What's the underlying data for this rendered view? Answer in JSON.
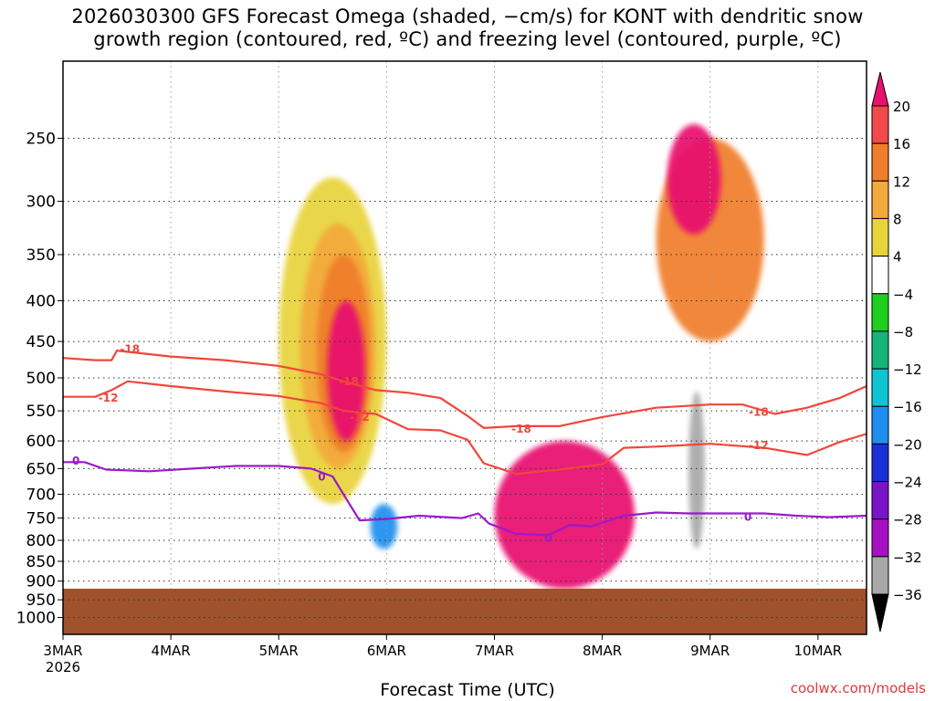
{
  "chart_data": {
    "type": "heatmap",
    "title_line1": "2026030300 GFS Forecast Omega (shaded, −cm/s) for KONT with dendritic snow",
    "title_line2": "growth region (contoured, red, ºC) and freezing level (contoured, purple, ºC)",
    "xlabel": "Forecast Time (UTC)",
    "ylabel": "",
    "x_ticks": [
      "3MAR",
      "4MAR",
      "5MAR",
      "6MAR",
      "7MAR",
      "8MAR",
      "9MAR",
      "10MAR"
    ],
    "x_year": "2026",
    "x_range_days": [
      0,
      7.45
    ],
    "y_ticks": [
      "250",
      "300",
      "350",
      "400",
      "450",
      "500",
      "550",
      "600",
      "650",
      "700",
      "750",
      "800",
      "850",
      "900",
      "950",
      "1000"
    ],
    "y_range_hpa": [
      1050,
      200
    ],
    "surface_pressure_hpa": 920,
    "colorbar_ticks": [
      "20",
      "16",
      "12",
      "8",
      "4",
      "−4",
      "−8",
      "−12",
      "−16",
      "−20",
      "−24",
      "−28",
      "−32",
      "−36"
    ],
    "colorbar_colors": [
      "#e8116e",
      "#f24a4a",
      "#f07d2c",
      "#f3a93b",
      "#e9d33b",
      "#ffffff",
      "#1fcf1f",
      "#14b47a",
      "#0fc4d2",
      "#1e8ff0",
      "#1a2fd4",
      "#7a14c8",
      "#a711c4",
      "#a8a8a8",
      "#000000"
    ],
    "contours": [
      {
        "name": "-18",
        "color": "#f0463c",
        "label": "-18",
        "x": [
          0.0,
          0.3,
          0.45,
          0.5,
          1.0,
          1.5,
          2.0,
          2.4,
          2.6,
          2.9,
          3.2,
          3.5,
          3.75,
          3.9,
          4.2,
          4.6,
          5.0,
          5.5,
          6.0,
          6.3,
          6.6,
          6.9,
          7.2,
          7.45
        ],
        "p": [
          472,
          475,
          475,
          462,
          470,
          475,
          483,
          495,
          505,
          518,
          522,
          530,
          558,
          578,
          575,
          575,
          560,
          545,
          540,
          540,
          555,
          545,
          530,
          512
        ]
      },
      {
        "name": "-12",
        "color": "#f0463c",
        "label": "-12",
        "x": [
          0.0,
          0.3,
          0.45,
          0.6,
          1.0,
          1.5,
          2.0,
          2.4,
          2.6,
          2.9,
          3.2,
          3.5,
          3.75,
          3.9,
          4.2,
          4.6,
          5.0,
          5.2,
          5.5,
          6.0,
          6.5,
          6.9,
          7.2,
          7.45
        ],
        "p": [
          528,
          528,
          518,
          505,
          512,
          520,
          527,
          538,
          550,
          555,
          580,
          582,
          598,
          640,
          660,
          652,
          642,
          612,
          610,
          605,
          612,
          625,
          602,
          588
        ]
      },
      {
        "name": "0",
        "color": "#9b1acb",
        "label": "0",
        "x": [
          0.0,
          0.2,
          0.4,
          0.8,
          1.2,
          1.6,
          2.0,
          2.3,
          2.5,
          2.6,
          2.75,
          3.0,
          3.3,
          3.7,
          3.85,
          3.95,
          4.2,
          4.5,
          4.7,
          4.9,
          5.2,
          5.5,
          5.8,
          6.2,
          6.5,
          6.8,
          7.1,
          7.45
        ],
        "p": [
          638,
          638,
          652,
          655,
          650,
          645,
          645,
          650,
          665,
          700,
          755,
          752,
          745,
          750,
          740,
          762,
          785,
          788,
          765,
          768,
          745,
          738,
          740,
          740,
          740,
          745,
          748,
          745
        ]
      }
    ],
    "contour_labels": [
      {
        "text": "-18",
        "x": 0.62,
        "p": 460
      },
      {
        "text": "-12",
        "x": 0.42,
        "p": 530
      },
      {
        "text": "0",
        "x": 0.12,
        "p": 636
      },
      {
        "text": "-18",
        "x": 2.65,
        "p": 505
      },
      {
        "text": "-12",
        "x": 2.75,
        "p": 560
      },
      {
        "text": "0",
        "x": 2.4,
        "p": 666
      },
      {
        "text": "-18",
        "x": 4.25,
        "p": 580
      },
      {
        "text": "0",
        "x": 4.5,
        "p": 795
      },
      {
        "text": "-18",
        "x": 6.45,
        "p": 552
      },
      {
        "text": "-12",
        "x": 6.45,
        "p": 608
      },
      {
        "text": "0",
        "x": 6.35,
        "p": 748
      }
    ],
    "omega_regions": [
      {
        "level": "4",
        "x": [
          2.0,
          3.0
        ],
        "p": [
          280,
          720
        ]
      },
      {
        "level": "8",
        "x": [
          2.2,
          2.9
        ],
        "p": [
          320,
          650
        ]
      },
      {
        "level": "12",
        "x": [
          2.35,
          2.85
        ],
        "p": [
          350,
          620
        ]
      },
      {
        "level": "20",
        "x": [
          2.45,
          2.8
        ],
        "p": [
          400,
          600
        ]
      },
      {
        "level": "20",
        "x": [
          4.0,
          5.3
        ],
        "p": [
          600,
          920
        ]
      },
      {
        "level": "12",
        "x": [
          5.5,
          6.5
        ],
        "p": [
          250,
          450
        ]
      },
      {
        "level": "20",
        "x": [
          5.6,
          6.1
        ],
        "p": [
          240,
          330
        ]
      },
      {
        "level": "-36",
        "x": [
          5.8,
          5.95
        ],
        "p": [
          520,
          820
        ]
      },
      {
        "level": "-20",
        "x": [
          2.85,
          3.1
        ],
        "p": [
          720,
          820
        ]
      }
    ]
  },
  "credit": "coolwx.com/models"
}
